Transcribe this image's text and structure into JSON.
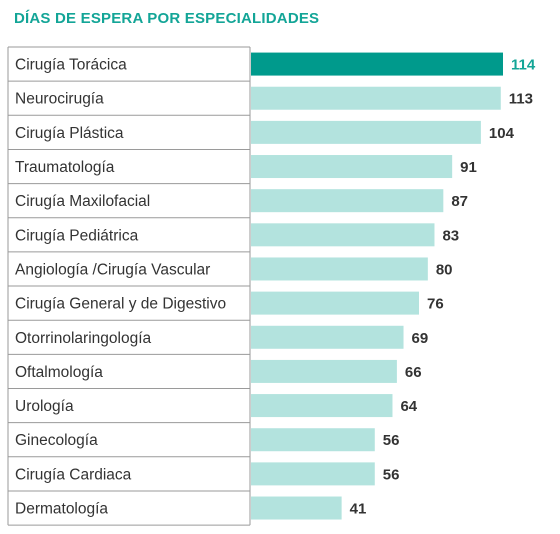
{
  "chart_data": {
    "type": "bar",
    "orientation": "horizontal",
    "title": "DÍAS DE ESPERA POR ESPECIALIDADES",
    "categories": [
      "Cirugía Torácica",
      "Neurocirugía",
      "Cirugía Plástica",
      "Traumatología",
      "Cirugía Maxilofacial",
      "Cirugía Pediátrica",
      "Angiología /Cirugía Vascular",
      "Cirugía General y de Digestivo",
      "Otorrinolaringología",
      "Oftalmología",
      "Urología",
      "Ginecología",
      "Cirugía Cardiaca",
      "Dermatología"
    ],
    "values": [
      114,
      113,
      104,
      91,
      87,
      83,
      80,
      76,
      69,
      66,
      64,
      56,
      56,
      41
    ],
    "highlight_index": 0,
    "xlim": [
      0,
      114
    ],
    "grid": false,
    "legend": "none",
    "colors": {
      "highlight_bar": "#009a8c",
      "bar": "#b3e3de",
      "highlight_value": "#13a597",
      "value": "#333333",
      "label": "#333333",
      "title": "#13a597",
      "border": "#9a9a9a"
    }
  }
}
